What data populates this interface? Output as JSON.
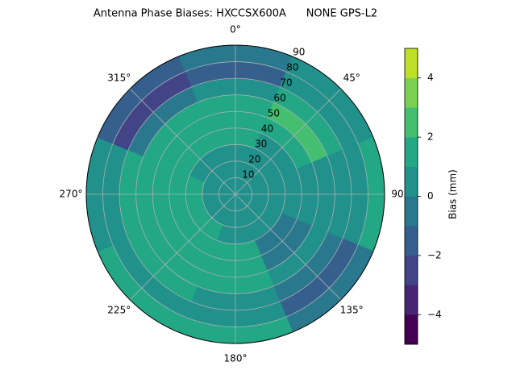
{
  "chart_data": {
    "type": "polar_contour",
    "title": "Antenna Phase Biases: HXCCSX600A      NONE GPS-L2",
    "rlim": [
      0,
      90
    ],
    "rticks": [
      10,
      20,
      30,
      40,
      50,
      60,
      70,
      80,
      90
    ],
    "thetaticks": [
      {
        "value": 0,
        "label": "0°"
      },
      {
        "value": 45,
        "label": "45°"
      },
      {
        "value": 90,
        "label": "90°"
      },
      {
        "value": 135,
        "label": "135°"
      },
      {
        "value": 180,
        "label": "180°"
      },
      {
        "value": 225,
        "label": "225°"
      },
      {
        "value": 270,
        "label": "270°"
      },
      {
        "value": 315,
        "label": "315°"
      }
    ],
    "z": [
      [
        0.5,
        0.5,
        0.5,
        0.5,
        0.5,
        0.5,
        0.5,
        0.5
      ],
      [
        0.5,
        0.5,
        0.5,
        0.5,
        0.5,
        0.5,
        0.5,
        0.5
      ],
      [
        0.5,
        0.5,
        0.5,
        0.5,
        0.5,
        1.5,
        1.5,
        0.5
      ],
      [
        1.5,
        0.5,
        0.5,
        -0.5,
        1.5,
        1.5,
        1.5,
        1.5
      ],
      [
        1.5,
        1.5,
        0.5,
        -0.5,
        1.5,
        1.5,
        1.5,
        1.5
      ],
      [
        1.5,
        2.5,
        0.5,
        0.5,
        1.5,
        1.5,
        1.5,
        1.5
      ],
      [
        0.5,
        1.5,
        0.5,
        -0.5,
        0.5,
        1.5,
        1.5,
        -0.5
      ],
      [
        -1.5,
        0.5,
        0.5,
        -1.5,
        0.5,
        0.5,
        0.5,
        -2.5
      ],
      [
        -0.5,
        0.5,
        1.5,
        -0.5,
        1.5,
        1.5,
        0.5,
        -1.5
      ]
    ],
    "levels": [
      -5,
      -4,
      -3,
      -2,
      -1,
      0,
      1,
      2,
      3,
      4,
      5
    ],
    "colors": [
      "#440154",
      "#482475",
      "#414487",
      "#355f8d",
      "#2a788e",
      "#21918c",
      "#22a884",
      "#44bf70",
      "#7ad151",
      "#bddf26"
    ],
    "colorbar_label": "Bias (mm)",
    "cticks": [
      {
        "value": -4,
        "label": "−4"
      },
      {
        "value": -2,
        "label": "−2"
      },
      {
        "value": 0,
        "label": "0"
      },
      {
        "value": 2,
        "label": "2"
      },
      {
        "value": 4,
        "label": "4"
      }
    ],
    "grid": true
  }
}
